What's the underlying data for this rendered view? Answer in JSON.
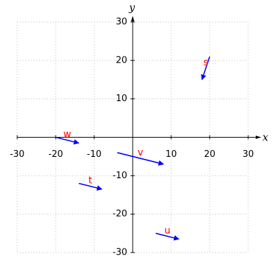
{
  "chart_data": {
    "type": "quiver",
    "x_label": "x",
    "y_label": "y",
    "xlim": [
      -30,
      30
    ],
    "ylim": [
      -30,
      30
    ],
    "xticks": [
      -30,
      -20,
      -10,
      10,
      20,
      30
    ],
    "yticks": [
      -30,
      -20,
      -10,
      10,
      20,
      30
    ],
    "grid": true,
    "color": "#0000ff",
    "label_color": "#ff0000",
    "vectors": [
      {
        "name": "s",
        "x": 20,
        "y": 21,
        "dx": -2,
        "dy": -6
      },
      {
        "name": "w",
        "x": -20,
        "y": 0,
        "dx": 6,
        "dy": -1.5
      },
      {
        "name": "v",
        "x": -4,
        "y": -4,
        "dx": 12,
        "dy": -3
      },
      {
        "name": "t",
        "x": -14,
        "y": -12,
        "dx": 6,
        "dy": -1.5
      },
      {
        "name": "u",
        "x": 6,
        "y": -25,
        "dx": 6,
        "dy": -1.5
      }
    ]
  }
}
